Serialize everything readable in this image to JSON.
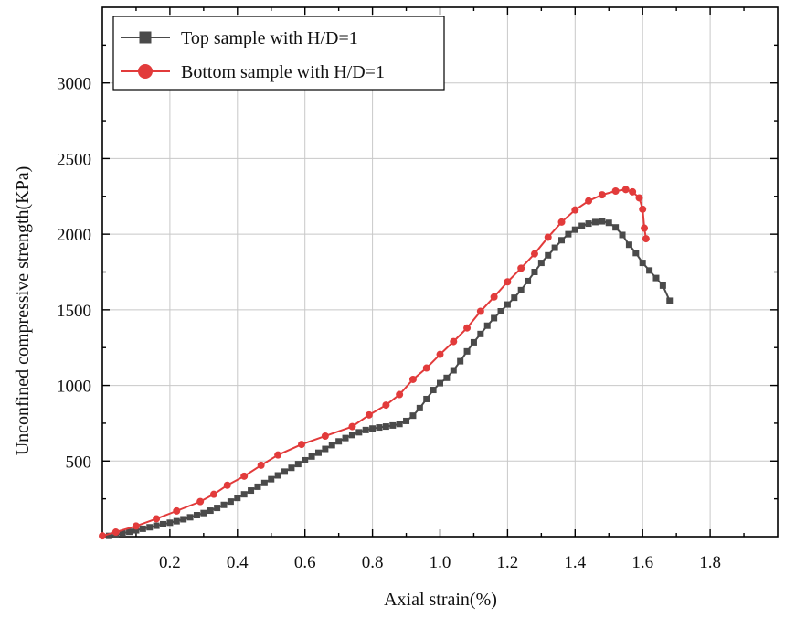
{
  "chart_data": {
    "type": "line",
    "title": "",
    "xlabel": "Axial strain(%)",
    "ylabel": "Unconfined compressive strength(KPa)",
    "xlim": [
      0,
      2.0
    ],
    "ylim": [
      0,
      3500
    ],
    "x_ticks": [
      0.2,
      0.4,
      0.6,
      0.8,
      1.0,
      1.2,
      1.4,
      1.6,
      1.8
    ],
    "x_tick_labels": [
      "0.2",
      "0.4",
      "0.6",
      "0.8",
      "1.0",
      "1.2",
      "1.4",
      "1.6",
      "1.8"
    ],
    "y_ticks": [
      500,
      1000,
      1500,
      2000,
      2500,
      3000
    ],
    "y_tick_labels": [
      "500",
      "1000",
      "1500",
      "2000",
      "2500",
      "3000"
    ],
    "grid": true,
    "legend_position": "top-left",
    "series": [
      {
        "name": "Top sample with H/D=1",
        "color": "#4a4a4a",
        "marker": "square",
        "x": [
          0.02,
          0.04,
          0.06,
          0.08,
          0.1,
          0.12,
          0.14,
          0.16,
          0.18,
          0.2,
          0.22,
          0.24,
          0.26,
          0.28,
          0.3,
          0.32,
          0.34,
          0.36,
          0.38,
          0.4,
          0.42,
          0.44,
          0.46,
          0.48,
          0.5,
          0.52,
          0.54,
          0.56,
          0.58,
          0.6,
          0.62,
          0.64,
          0.66,
          0.68,
          0.7,
          0.72,
          0.74,
          0.76,
          0.78,
          0.8,
          0.82,
          0.84,
          0.86,
          0.88,
          0.9,
          0.92,
          0.94,
          0.96,
          0.98,
          1.0,
          1.02,
          1.04,
          1.06,
          1.08,
          1.1,
          1.12,
          1.14,
          1.16,
          1.18,
          1.2,
          1.22,
          1.24,
          1.26,
          1.28,
          1.3,
          1.32,
          1.34,
          1.36,
          1.38,
          1.4,
          1.42,
          1.44,
          1.46,
          1.48,
          1.5,
          1.52,
          1.54,
          1.56,
          1.58,
          1.6,
          1.62,
          1.64,
          1.66,
          1.68
        ],
        "y": [
          5,
          12,
          22,
          32,
          42,
          52,
          62,
          72,
          82,
          92,
          102,
          115,
          128,
          142,
          156,
          172,
          190,
          210,
          232,
          256,
          280,
          305,
          330,
          355,
          380,
          405,
          430,
          455,
          480,
          505,
          530,
          555,
          580,
          605,
          630,
          652,
          672,
          690,
          705,
          715,
          722,
          728,
          735,
          745,
          765,
          800,
          850,
          910,
          970,
          1015,
          1050,
          1100,
          1160,
          1225,
          1285,
          1340,
          1395,
          1445,
          1490,
          1535,
          1580,
          1630,
          1690,
          1750,
          1810,
          1860,
          1910,
          1960,
          2000,
          2030,
          2055,
          2070,
          2080,
          2085,
          2075,
          2045,
          1995,
          1930,
          1875,
          1810,
          1760,
          1710,
          1660,
          1560
        ]
      },
      {
        "name": "Bottom sample with H/D=1",
        "color": "#e23b3b",
        "marker": "circle",
        "x": [
          0.0,
          0.04,
          0.1,
          0.16,
          0.22,
          0.29,
          0.33,
          0.37,
          0.42,
          0.47,
          0.52,
          0.59,
          0.66,
          0.74,
          0.79,
          0.84,
          0.88,
          0.92,
          0.96,
          1.0,
          1.04,
          1.08,
          1.12,
          1.16,
          1.2,
          1.24,
          1.28,
          1.32,
          1.36,
          1.4,
          1.44,
          1.48,
          1.52,
          1.55,
          1.57,
          1.59,
          1.6,
          1.605,
          1.61
        ],
        "y": [
          5,
          30,
          70,
          118,
          170,
          232,
          280,
          340,
          400,
          472,
          540,
          610,
          665,
          728,
          805,
          870,
          940,
          1040,
          1115,
          1205,
          1290,
          1380,
          1490,
          1585,
          1685,
          1775,
          1870,
          1980,
          2080,
          2160,
          2220,
          2260,
          2285,
          2295,
          2280,
          2240,
          2165,
          2040,
          1970
        ]
      }
    ]
  }
}
